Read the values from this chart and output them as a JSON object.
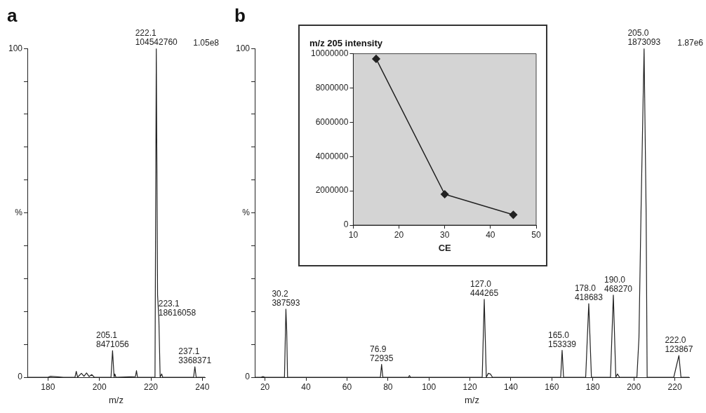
{
  "chart_data": [
    {
      "type": "line",
      "title": "a",
      "xlabel": "m/z",
      "color": "#222222",
      "x": [
        172,
        180,
        181,
        186,
        190.5,
        191,
        191.5,
        193,
        194,
        195,
        196,
        197,
        198,
        204.5,
        205.1,
        205.7,
        206,
        206.4,
        214,
        214.4,
        214.8,
        221.6,
        222.1,
        222.6,
        223.1,
        223.6,
        224.2,
        224.6,
        236.6,
        237.1,
        237.6,
        241
      ],
      "values": [
        0,
        0,
        0.3,
        0,
        0,
        1.8,
        0,
        1.2,
        0.3,
        1.3,
        0.2,
        0.8,
        0,
        0,
        8.1,
        0,
        1,
        0,
        0.2,
        2,
        0,
        0,
        100,
        25,
        17.8,
        0,
        1,
        0,
        0,
        3.2,
        0,
        0
      ],
      "xlim": [
        172,
        241
      ],
      "xticks": [
        180,
        200,
        220,
        240
      ],
      "ylim": [
        0,
        100
      ],
      "yticks": [
        0,
        {
          "value": 10,
          "label": null
        },
        {
          "value": 20,
          "label": null
        },
        {
          "value": 30,
          "label": null
        },
        {
          "value": 40,
          "label": null
        },
        {
          "value": 50,
          "label": "%"
        },
        {
          "value": 60,
          "label": null
        },
        {
          "value": 70,
          "label": null
        },
        {
          "value": 80,
          "label": null
        },
        {
          "value": 90,
          "label": null
        },
        100
      ],
      "grid": false,
      "annotations": [
        "1.05e8",
        {
          "text": "222.1\n104542760",
          "x": 222.1,
          "y": 100
        },
        {
          "text": "223.1\n18616058",
          "x": 223.1,
          "y": 17.8
        },
        {
          "text": "205.1\n8471056",
          "x": 205.1,
          "y": 8.1
        },
        {
          "text": "237.1\n3368371",
          "x": 237.1,
          "y": 3.2
        }
      ]
    },
    {
      "type": "line",
      "title": "b",
      "xlabel": "m/z",
      "color": "#222222",
      "x": [
        15,
        18,
        19,
        20,
        29.5,
        30.2,
        30.6,
        31,
        76.3,
        76.9,
        77.5,
        90,
        90.5,
        91,
        126,
        127,
        128,
        129,
        130,
        131,
        164.3,
        165,
        165.7,
        176.5,
        178,
        179.3,
        188.6,
        190,
        191.2,
        192,
        193,
        201.5,
        202.5,
        203.5,
        205,
        206,
        206.5,
        219.5,
        221,
        222,
        223,
        227
      ],
      "values": [
        0,
        0,
        0.2,
        0,
        0,
        20.7,
        14,
        0,
        0,
        3.9,
        0,
        0,
        0.5,
        0,
        0,
        23.7,
        0,
        1.2,
        1,
        0,
        0,
        8.2,
        0,
        0,
        22.4,
        0,
        0,
        25,
        0,
        1,
        0,
        0,
        12,
        50,
        100,
        50,
        0,
        0,
        4,
        6.6,
        0,
        0
      ],
      "xlim": [
        15,
        227
      ],
      "xticks": [
        20,
        40,
        60,
        80,
        100,
        120,
        140,
        160,
        180,
        200,
        220
      ],
      "ylim": [
        0,
        100
      ],
      "yticks": [
        0,
        {
          "value": 10,
          "label": null
        },
        {
          "value": 20,
          "label": null
        },
        {
          "value": 30,
          "label": null
        },
        {
          "value": 40,
          "label": null
        },
        {
          "value": 50,
          "label": "%"
        },
        {
          "value": 60,
          "label": null
        },
        {
          "value": 70,
          "label": null
        },
        {
          "value": 80,
          "label": null
        },
        {
          "value": 90,
          "label": null
        },
        100
      ],
      "grid": false,
      "annotations": [
        "1.87e6",
        {
          "text": "205.0\n1873093",
          "x": 205,
          "y": 100
        },
        {
          "text": "30.2\n387593",
          "x": 30.2,
          "y": 20.7
        },
        {
          "text": "76.9\n72935",
          "x": 76.9,
          "y": 3.9
        },
        {
          "text": "127.0\n444265",
          "x": 127,
          "y": 23.7
        },
        {
          "text": "165.0\n153339",
          "x": 165,
          "y": 8.2
        },
        {
          "text": "178.0\n418683",
          "x": 178,
          "y": 22.4
        },
        {
          "text": "190.0\n468270",
          "x": 190,
          "y": 25
        },
        {
          "text": "222.0\n123867",
          "x": 222,
          "y": 6.6
        }
      ]
    },
    {
      "type": "line",
      "title": "m/z 205 intensity",
      "xlabel": "CE",
      "color": "#222222",
      "marker": "diamond",
      "x": [
        15,
        30,
        45
      ],
      "values": [
        9700000,
        1800000,
        600000
      ],
      "xlim": [
        10,
        50
      ],
      "xticks": [
        10,
        20,
        30,
        40,
        50
      ],
      "ylim": [
        0,
        10000000
      ],
      "yticks": [
        0,
        2000000,
        4000000,
        6000000,
        8000000,
        10000000
      ],
      "grid": false
    }
  ]
}
